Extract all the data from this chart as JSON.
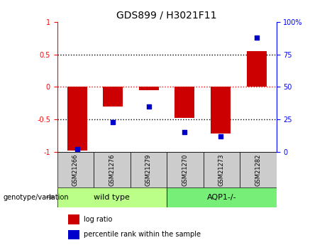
{
  "title": "GDS899 / H3021F11",
  "samples": [
    "GSM21266",
    "GSM21276",
    "GSM21279",
    "GSM21270",
    "GSM21273",
    "GSM21282"
  ],
  "log_ratios": [
    -0.98,
    -0.3,
    -0.05,
    -0.48,
    -0.72,
    0.55
  ],
  "percentile_ranks": [
    2,
    23,
    35,
    15,
    12,
    88
  ],
  "group1_label": "wild type",
  "group2_label": "AQP1-/-",
  "bar_color": "#cc0000",
  "dot_color": "#0000cc",
  "group1_bg": "#bbff88",
  "group2_bg": "#77ee77",
  "sample_bg": "#cccccc",
  "genotype_label": "genotype/variation",
  "legend_log_ratio": "log ratio",
  "legend_percentile": "percentile rank within the sample",
  "ylim": [
    -1,
    1
  ],
  "y2lim": [
    0,
    100
  ],
  "yticks_left": [
    -1,
    -0.5,
    0,
    0.5,
    1
  ],
  "yticks_right": [
    0,
    25,
    50,
    75,
    100
  ],
  "bar_width": 0.55,
  "title_fontsize": 10,
  "tick_fontsize": 7,
  "sample_fontsize": 6,
  "group_fontsize": 8,
  "legend_fontsize": 7,
  "geno_fontsize": 7
}
